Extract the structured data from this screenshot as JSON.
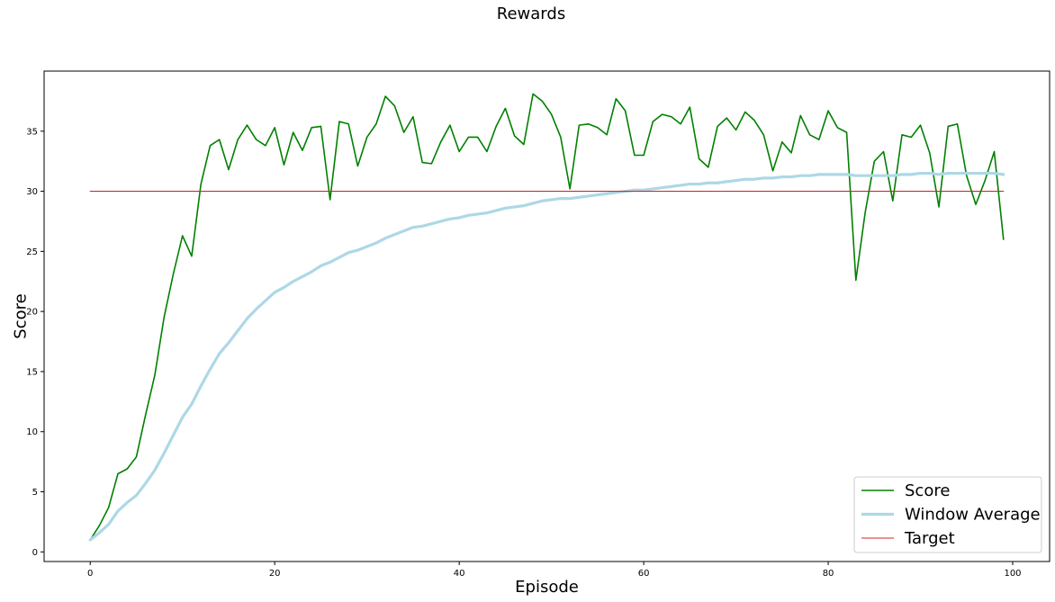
{
  "chart_data": {
    "type": "line",
    "title": "Rewards",
    "xlabel": "Episode",
    "ylabel": "Score",
    "xlim": [
      -5,
      104
    ],
    "ylim": [
      -0.8,
      40
    ],
    "xticks": [
      0,
      20,
      40,
      60,
      80,
      100
    ],
    "yticks": [
      0,
      5,
      10,
      15,
      20,
      25,
      30,
      35
    ],
    "grid": false,
    "legend_position": "lower-right",
    "series": [
      {
        "name": "Score",
        "color": "#008000",
        "x": [
          0,
          1,
          2,
          3,
          4,
          5,
          6,
          7,
          8,
          9,
          10,
          11,
          12,
          13,
          14,
          15,
          16,
          17,
          18,
          19,
          20,
          21,
          22,
          23,
          24,
          25,
          26,
          27,
          28,
          29,
          30,
          31,
          32,
          33,
          34,
          35,
          36,
          37,
          38,
          39,
          40,
          41,
          42,
          43,
          44,
          45,
          46,
          47,
          48,
          49,
          50,
          51,
          52,
          53,
          54,
          55,
          56,
          57,
          58,
          59,
          60,
          61,
          62,
          63,
          64,
          65,
          66,
          67,
          68,
          69,
          70,
          71,
          72,
          73,
          74,
          75,
          76,
          77,
          78,
          79,
          80,
          81,
          82,
          83,
          84,
          85,
          86,
          87,
          88,
          89,
          90,
          91,
          92,
          93,
          94,
          95,
          96,
          97,
          98,
          99
        ],
        "values": [
          1.0,
          2.2,
          3.7,
          6.5,
          6.9,
          7.9,
          11.4,
          14.7,
          19.5,
          23.1,
          26.3,
          24.6,
          30.6,
          33.8,
          34.3,
          31.8,
          34.3,
          35.5,
          34.3,
          33.8,
          35.3,
          32.2,
          34.9,
          33.4,
          35.3,
          35.4,
          29.3,
          35.8,
          35.6,
          32.1,
          34.5,
          35.6,
          37.9,
          37.1,
          34.9,
          36.2,
          32.4,
          32.3,
          34.1,
          35.5,
          33.3,
          34.5,
          34.5,
          33.3,
          35.4,
          36.9,
          34.6,
          33.9,
          38.1,
          37.5,
          36.4,
          34.5,
          30.2,
          35.5,
          35.6,
          35.3,
          34.7,
          37.7,
          36.7,
          33.0,
          33.0,
          35.8,
          36.4,
          36.2,
          35.6,
          37.0,
          32.7,
          32.0,
          35.4,
          36.1,
          35.1,
          36.6,
          35.9,
          34.7,
          31.7,
          34.1,
          33.2,
          36.3,
          34.7,
          34.3,
          36.7,
          35.3,
          34.9,
          22.6,
          28.2,
          32.5,
          33.3,
          29.2,
          34.7,
          34.5,
          35.5,
          33.2,
          28.7,
          35.4,
          35.6,
          31.3,
          28.9,
          30.9,
          33.3,
          26.0
        ]
      },
      {
        "name": "Window Average",
        "color": "#ADD8E6",
        "x": [
          0,
          1,
          2,
          3,
          4,
          5,
          6,
          7,
          8,
          9,
          10,
          11,
          12,
          13,
          14,
          15,
          16,
          17,
          18,
          19,
          20,
          21,
          22,
          23,
          24,
          25,
          26,
          27,
          28,
          29,
          30,
          31,
          32,
          33,
          34,
          35,
          36,
          37,
          38,
          39,
          40,
          41,
          42,
          43,
          44,
          45,
          46,
          47,
          48,
          49,
          50,
          51,
          52,
          53,
          54,
          55,
          56,
          57,
          58,
          59,
          60,
          61,
          62,
          63,
          64,
          65,
          66,
          67,
          68,
          69,
          70,
          71,
          72,
          73,
          74,
          75,
          76,
          77,
          78,
          79,
          80,
          81,
          82,
          83,
          84,
          85,
          86,
          87,
          88,
          89,
          90,
          91,
          92,
          93,
          94,
          95,
          96,
          97,
          98,
          99
        ],
        "values": [
          1.0,
          1.6,
          2.3,
          3.4,
          4.1,
          4.7,
          5.7,
          6.8,
          8.2,
          9.7,
          11.2,
          12.3,
          13.8,
          15.2,
          16.5,
          17.4,
          18.4,
          19.4,
          20.2,
          20.9,
          21.6,
          22.0,
          22.5,
          22.9,
          23.3,
          23.8,
          24.1,
          24.5,
          24.9,
          25.1,
          25.4,
          25.7,
          26.1,
          26.4,
          26.7,
          27.0,
          27.1,
          27.3,
          27.5,
          27.7,
          27.8,
          28.0,
          28.1,
          28.2,
          28.4,
          28.6,
          28.7,
          28.8,
          29.0,
          29.2,
          29.3,
          29.4,
          29.4,
          29.5,
          29.6,
          29.7,
          29.8,
          29.9,
          30.0,
          30.1,
          30.1,
          30.2,
          30.3,
          30.4,
          30.5,
          30.6,
          30.6,
          30.7,
          30.7,
          30.8,
          30.9,
          31.0,
          31.0,
          31.1,
          31.1,
          31.2,
          31.2,
          31.3,
          31.3,
          31.4,
          31.4,
          31.4,
          31.4,
          31.3,
          31.3,
          31.3,
          31.3,
          31.3,
          31.4,
          31.4,
          31.5,
          31.5,
          31.4,
          31.5,
          31.5,
          31.5,
          31.5,
          31.5,
          31.5,
          31.4
        ]
      },
      {
        "name": "Target",
        "color": "#D62728",
        "x": [
          0,
          99
        ],
        "values": [
          30,
          30
        ]
      }
    ]
  }
}
